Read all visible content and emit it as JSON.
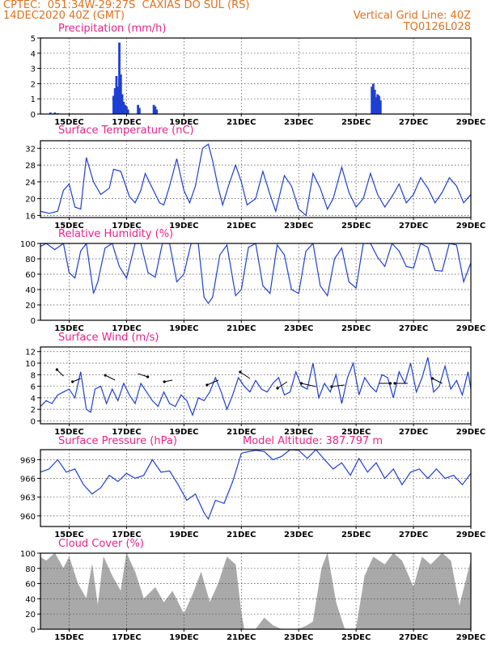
{
  "header": {
    "line1": "CPTEC:  051:34W-29:27S  CAXIAS DO SUL (RS)",
    "line2": "14DEC2020 40Z (GMT)",
    "grid_note": "Vertical Grid Line: 40Z",
    "code": "TQ0126L028"
  },
  "x_ticks": [
    "15DEC",
    "17DEC",
    "19DEC",
    "21DEC",
    "23DEC",
    "25DEC",
    "27DEC",
    "29DEC"
  ],
  "colors": {
    "line": "#1e3fd6",
    "precip": "#1e3fd6",
    "cloud": "#a9a9a9",
    "title": "#e8238a",
    "header": "#e07020"
  },
  "chart_data": [
    {
      "type": "bar",
      "title": "Precipitation (mm/h)",
      "xlim": [
        14,
        29
      ],
      "ylim": [
        0,
        5
      ],
      "yticks": [
        0,
        1,
        2,
        3,
        4,
        5
      ],
      "grid": true,
      "x": [
        14.35,
        14.5,
        14.6,
        16.55,
        16.6,
        16.65,
        16.7,
        16.75,
        16.8,
        16.85,
        16.9,
        16.95,
        17.0,
        17.05,
        17.4,
        17.45,
        17.95,
        18.0,
        18.05,
        25.55,
        25.6,
        25.65,
        25.7,
        25.75,
        25.8,
        25.85
      ],
      "values": [
        0.1,
        0.1,
        0.05,
        1.2,
        1.7,
        2.5,
        1.8,
        4.7,
        2.6,
        1.3,
        0.8,
        0.6,
        0.5,
        0.3,
        0.6,
        0.4,
        0.6,
        0.5,
        0.3,
        1.8,
        2.0,
        1.6,
        1.1,
        1.3,
        1.2,
        0.9
      ]
    },
    {
      "type": "line",
      "title": "Surface Temperature (nC)",
      "xlim": [
        14,
        29
      ],
      "ylim": [
        15.5,
        33.8
      ],
      "yticks": [
        16,
        20,
        24,
        28,
        32
      ],
      "grid": true,
      "x": [
        14.0,
        14.3,
        14.6,
        14.8,
        15.0,
        15.2,
        15.4,
        15.6,
        15.85,
        16.1,
        16.4,
        16.55,
        16.8,
        17.1,
        17.3,
        17.5,
        17.65,
        17.9,
        18.15,
        18.3,
        18.5,
        18.75,
        19.0,
        19.2,
        19.4,
        19.65,
        19.85,
        20.0,
        20.2,
        20.35,
        20.55,
        20.8,
        21.0,
        21.2,
        21.5,
        21.75,
        22.0,
        22.2,
        22.5,
        22.75,
        23.0,
        23.25,
        23.5,
        23.75,
        24.0,
        24.2,
        24.5,
        24.75,
        25.0,
        25.25,
        25.5,
        25.75,
        26.0,
        26.25,
        26.5,
        26.75,
        27.0,
        27.25,
        27.5,
        27.75,
        28.0,
        28.25,
        28.5,
        28.75,
        29.0
      ],
      "values": [
        17,
        16.5,
        17,
        22,
        23.5,
        18,
        17.5,
        29.8,
        24,
        21,
        22.5,
        27,
        26.5,
        20.5,
        19,
        22,
        26,
        22.5,
        19,
        18.5,
        23,
        29.5,
        22,
        19,
        23,
        32,
        33,
        29,
        22.5,
        18.5,
        23,
        28,
        24,
        18.5,
        20,
        26.5,
        21,
        17,
        25.5,
        23,
        17.5,
        16,
        26,
        22.5,
        17.5,
        20,
        27.5,
        21.5,
        18,
        20,
        26,
        21,
        18,
        20.5,
        23.5,
        19,
        21,
        25,
        22.5,
        19,
        21.5,
        25,
        23,
        19,
        21
      ]
    },
    {
      "type": "line",
      "title": "Relative Humidity (%)",
      "xlim": [
        14,
        29
      ],
      "ylim": [
        0,
        100
      ],
      "yticks": [
        0,
        20,
        40,
        60,
        80,
        100
      ],
      "grid": true,
      "x": [
        14.0,
        14.2,
        14.5,
        14.8,
        15.0,
        15.2,
        15.4,
        15.6,
        15.85,
        16.0,
        16.25,
        16.5,
        16.75,
        17.0,
        17.3,
        17.5,
        17.75,
        18.0,
        18.25,
        18.5,
        18.75,
        19.0,
        19.25,
        19.5,
        19.7,
        19.85,
        20.0,
        20.25,
        20.5,
        20.8,
        21.0,
        21.25,
        21.5,
        21.75,
        22.0,
        22.25,
        22.5,
        22.75,
        23.0,
        23.25,
        23.5,
        23.75,
        24.0,
        24.25,
        24.5,
        24.75,
        25.0,
        25.25,
        25.5,
        25.75,
        26.0,
        26.25,
        26.5,
        26.75,
        27.0,
        27.25,
        27.5,
        27.75,
        28.0,
        28.25,
        28.5,
        28.75,
        29.0
      ],
      "values": [
        96,
        100,
        92,
        100,
        62,
        55,
        90,
        100,
        35,
        50,
        94,
        100,
        70,
        55,
        100,
        100,
        62,
        56,
        100,
        100,
        50,
        60,
        100,
        100,
        30,
        22,
        30,
        85,
        98,
        32,
        40,
        95,
        100,
        45,
        35,
        98,
        85,
        40,
        35,
        90,
        100,
        45,
        32,
        80,
        94,
        50,
        42,
        100,
        100,
        82,
        70,
        100,
        90,
        70,
        68,
        100,
        95,
        65,
        64,
        100,
        98,
        50,
        75
      ]
    },
    {
      "type": "line",
      "title": "Surface Wind (m/s)",
      "xlim": [
        14,
        29
      ],
      "ylim": [
        -0.5,
        12.8
      ],
      "yticks": [
        0,
        2,
        4,
        6,
        8,
        10,
        12
      ],
      "grid": true,
      "x": [
        14.0,
        14.2,
        14.4,
        14.6,
        14.8,
        15.0,
        15.2,
        15.4,
        15.6,
        15.75,
        15.9,
        16.1,
        16.3,
        16.5,
        16.7,
        16.9,
        17.1,
        17.3,
        17.5,
        17.7,
        17.9,
        18.1,
        18.3,
        18.5,
        18.7,
        18.9,
        19.1,
        19.3,
        19.5,
        19.7,
        19.9,
        20.1,
        20.3,
        20.5,
        20.7,
        20.9,
        21.1,
        21.3,
        21.5,
        21.7,
        21.9,
        22.1,
        22.3,
        22.5,
        22.7,
        22.9,
        23.1,
        23.3,
        23.5,
        23.7,
        23.9,
        24.1,
        24.3,
        24.5,
        24.7,
        24.9,
        25.1,
        25.3,
        25.5,
        25.7,
        25.9,
        26.1,
        26.3,
        26.5,
        26.7,
        26.9,
        27.1,
        27.3,
        27.5,
        27.7,
        27.9,
        28.1,
        28.3,
        28.5,
        28.7,
        28.9,
        29.0
      ],
      "values": [
        2.5,
        3.5,
        3,
        4.5,
        5,
        5.5,
        4,
        8.5,
        2,
        1.5,
        5.5,
        6,
        3,
        5.5,
        3.5,
        6.5,
        4.5,
        3,
        6.5,
        5,
        3.5,
        2.5,
        5,
        3,
        2.5,
        4.5,
        3.5,
        1,
        4,
        3.5,
        5,
        7.5,
        5,
        2,
        4.5,
        7.5,
        6,
        5,
        7,
        5.5,
        5,
        6.5,
        7.5,
        4.5,
        5,
        8.5,
        6,
        5.5,
        10,
        4,
        6.5,
        5,
        8,
        3,
        7.5,
        10,
        4.5,
        7.5,
        6,
        5,
        8,
        7.5,
        4,
        8.5,
        6.5,
        10,
        5,
        7.5,
        11,
        5,
        6,
        9.5,
        5.5,
        7,
        4.5,
        8.5,
        5.5
      ]
    },
    {
      "type": "line",
      "title": "Surface Pressure (hPa)",
      "annotation": "Model Altitude: 387.797 m",
      "xlim": [
        14,
        29
      ],
      "ylim": [
        958.3,
        970.6
      ],
      "yticks": [
        960,
        963,
        966,
        969
      ],
      "grid": true,
      "x": [
        14.0,
        14.3,
        14.6,
        14.9,
        15.2,
        15.5,
        15.8,
        16.1,
        16.4,
        16.7,
        17.0,
        17.3,
        17.6,
        17.9,
        18.2,
        18.5,
        18.8,
        19.1,
        19.4,
        19.7,
        19.85,
        20.1,
        20.4,
        20.7,
        21.0,
        21.15,
        21.5,
        21.8,
        22.1,
        22.4,
        22.7,
        23.0,
        23.3,
        23.6,
        23.9,
        24.2,
        24.5,
        24.8,
        25.1,
        25.4,
        25.7,
        26.0,
        26.3,
        26.6,
        26.9,
        27.2,
        27.5,
        27.8,
        28.1,
        28.4,
        28.7,
        29.0
      ],
      "values": [
        967,
        967.5,
        969,
        967,
        967.5,
        965,
        963.5,
        964.5,
        966.5,
        965.5,
        966.8,
        966,
        966.5,
        969,
        967,
        967.2,
        965,
        962.5,
        963.5,
        960.5,
        959.5,
        962.5,
        962,
        965.5,
        970,
        970.2,
        970.5,
        970.3,
        969,
        969.5,
        970.6,
        970.5,
        969.2,
        970.6,
        969,
        967.5,
        968.5,
        966.5,
        969.2,
        967,
        968.5,
        966,
        967.5,
        965,
        967,
        967.5,
        966,
        967.5,
        966,
        966.5,
        965,
        966.8
      ]
    },
    {
      "type": "area",
      "title": "Cloud Cover (%)",
      "xlim": [
        14,
        29
      ],
      "ylim": [
        0,
        100
      ],
      "yticks": [
        0,
        20,
        40,
        60,
        80,
        100
      ],
      "grid": true,
      "x": [
        14.0,
        14.2,
        14.5,
        14.8,
        15.0,
        15.3,
        15.6,
        15.8,
        16.0,
        16.2,
        16.5,
        16.8,
        17.0,
        17.3,
        17.6,
        18.0,
        18.3,
        18.6,
        19.0,
        19.3,
        19.6,
        19.9,
        20.2,
        20.5,
        20.8,
        21.0,
        21.1,
        21.5,
        21.8,
        22.1,
        22.4,
        22.7,
        22.9,
        23.0,
        23.3,
        23.5,
        23.8,
        24.0,
        24.3,
        24.6,
        25.0,
        25.3,
        25.6,
        26.0,
        26.3,
        26.6,
        27.0,
        27.3,
        27.6,
        28.0,
        28.3,
        28.6,
        29.0
      ],
      "values": [
        95,
        90,
        100,
        80,
        95,
        60,
        40,
        85,
        30,
        95,
        70,
        50,
        100,
        75,
        40,
        55,
        35,
        50,
        20,
        45,
        75,
        35,
        60,
        95,
        85,
        20,
        0,
        0,
        15,
        5,
        0,
        0,
        0,
        0,
        5,
        10,
        80,
        100,
        35,
        0,
        0,
        70,
        95,
        85,
        100,
        90,
        55,
        95,
        85,
        100,
        90,
        30,
        90
      ]
    }
  ]
}
